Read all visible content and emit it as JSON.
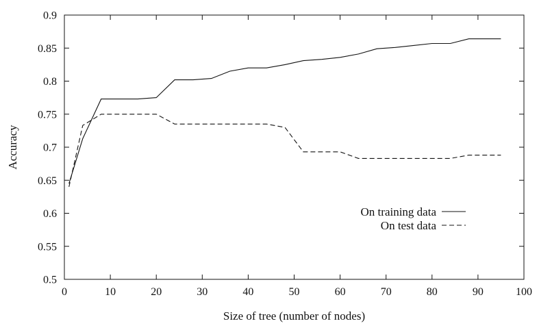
{
  "chart_data": {
    "type": "line",
    "title": "",
    "xlabel": "Size of tree (number of nodes)",
    "ylabel": "Accuracy",
    "xlim": [
      0,
      100
    ],
    "ylim": [
      0.5,
      0.9
    ],
    "xticks": [
      0,
      10,
      20,
      30,
      40,
      50,
      60,
      70,
      80,
      90,
      100
    ],
    "yticks": [
      0.5,
      0.55,
      0.6,
      0.65,
      0.7,
      0.75,
      0.8,
      0.85,
      0.9
    ],
    "xtick_labels": [
      "0",
      "10",
      "20",
      "30",
      "40",
      "50",
      "60",
      "70",
      "80",
      "90",
      "100"
    ],
    "ytick_labels": [
      "0.5",
      "0.55",
      "0.6",
      "0.65",
      "0.7",
      "0.75",
      "0.8",
      "0.85",
      "0.9"
    ],
    "grid": false,
    "legend_position": "right",
    "series": [
      {
        "name": "On training data",
        "style": "solid",
        "x": [
          1,
          4,
          8,
          12,
          16,
          20,
          24,
          28,
          32,
          36,
          40,
          44,
          48,
          52,
          56,
          60,
          64,
          68,
          72,
          76,
          80,
          84,
          88,
          92,
          95
        ],
        "y": [
          0.645,
          0.713,
          0.773,
          0.773,
          0.773,
          0.775,
          0.802,
          0.802,
          0.804,
          0.815,
          0.82,
          0.82,
          0.825,
          0.831,
          0.833,
          0.836,
          0.841,
          0.849,
          0.851,
          0.854,
          0.857,
          0.857,
          0.864,
          0.864,
          0.864
        ]
      },
      {
        "name": "On test data",
        "style": "dashed",
        "x": [
          1,
          4,
          8,
          12,
          16,
          20,
          24,
          28,
          32,
          36,
          40,
          44,
          48,
          52,
          56,
          60,
          64,
          68,
          72,
          76,
          80,
          84,
          88,
          92,
          95
        ],
        "y": [
          0.64,
          0.733,
          0.75,
          0.75,
          0.75,
          0.75,
          0.735,
          0.735,
          0.735,
          0.735,
          0.735,
          0.735,
          0.73,
          0.693,
          0.693,
          0.693,
          0.683,
          0.683,
          0.683,
          0.683,
          0.683,
          0.683,
          0.688,
          0.688,
          0.688
        ]
      }
    ]
  }
}
